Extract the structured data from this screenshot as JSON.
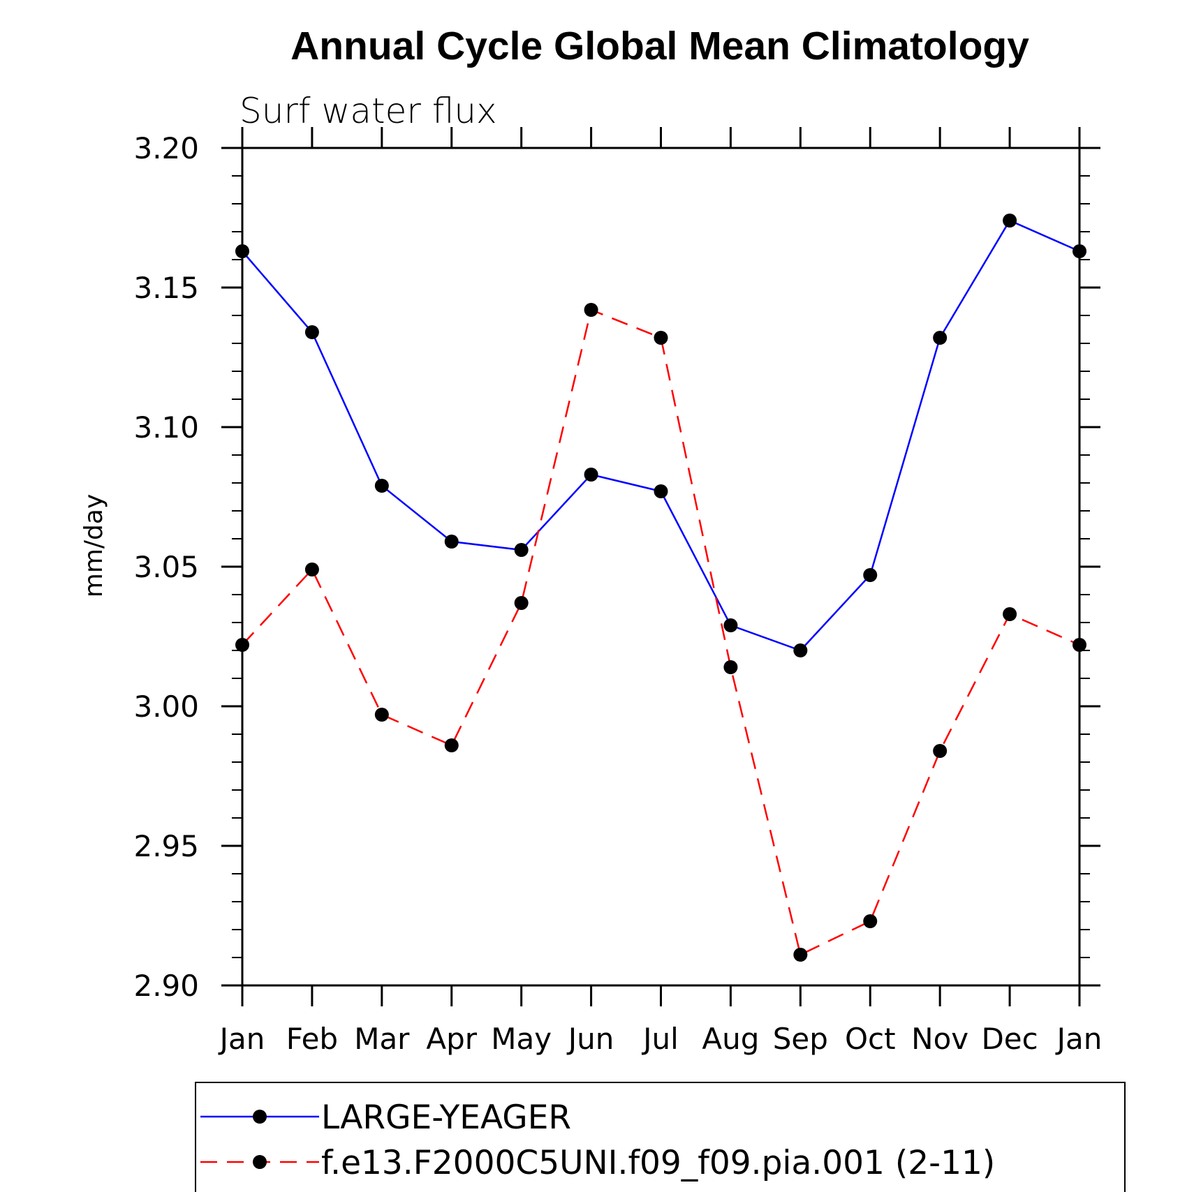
{
  "chart_data": {
    "type": "line",
    "title": "Annual Cycle Global Mean Climatology",
    "subtitle": "Surf water flux",
    "xlabel": "",
    "ylabel": "mm/day",
    "categories": [
      "Jan",
      "Feb",
      "Mar",
      "Apr",
      "May",
      "Jun",
      "Jul",
      "Aug",
      "Sep",
      "Oct",
      "Nov",
      "Dec",
      "Jan"
    ],
    "ylim": [
      2.9,
      3.2
    ],
    "yticks": [
      "2.90",
      "2.95",
      "3.00",
      "3.05",
      "3.10",
      "3.15",
      "3.20"
    ],
    "grid": false,
    "legend_position": "bottom",
    "series": [
      {
        "name": "LARGE-YEAGER",
        "color": "#0000ff",
        "dash": "solid",
        "marker": "filled-circle",
        "values": [
          3.163,
          3.134,
          3.079,
          3.059,
          3.056,
          3.083,
          3.077,
          3.029,
          3.02,
          3.047,
          3.132,
          3.174,
          3.163
        ]
      },
      {
        "name": "f.e13.F2000C5UNI.f09_f09.pia.001 (2-11)",
        "color": "#ff0000",
        "dash": "dashed",
        "marker": "filled-circle",
        "values": [
          3.022,
          3.049,
          2.997,
          2.986,
          3.037,
          3.142,
          3.132,
          3.014,
          2.911,
          2.923,
          2.984,
          3.033,
          3.022
        ]
      }
    ]
  }
}
